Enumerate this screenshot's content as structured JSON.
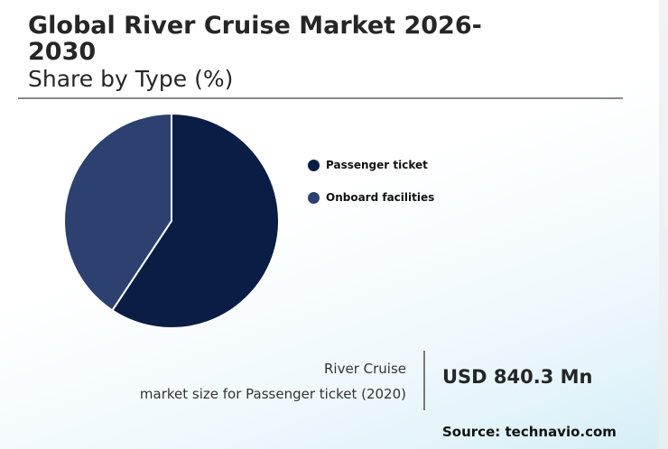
{
  "header": {
    "title": "Global River Cruise Market 2026-2030",
    "subtitle": "Share by Type (%)"
  },
  "chart_data": {
    "type": "pie",
    "title": "Global River Cruise Market 2026-2030",
    "subtitle": "Share by Type (%)",
    "categories": [
      "Passenger ticket",
      "Onboard facilities"
    ],
    "values": [
      59.3,
      40.7
    ],
    "colors": [
      "#0a1d45",
      "#2c4170"
    ],
    "legend_position": "right"
  },
  "stat": {
    "label_line1": "River Cruise",
    "label_line2": "market size for Passenger ticket (2020)",
    "value": "USD 840.3 Mn"
  },
  "source": "Source: technavio.com"
}
